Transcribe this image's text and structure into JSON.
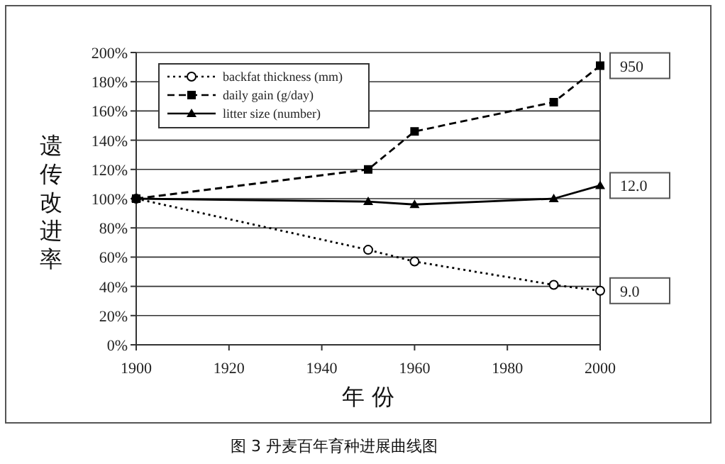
{
  "chart_data": {
    "type": "line",
    "ylabel": "遗传改进率",
    "xlabel": "年 份",
    "title": "图 3 丹麦百年育种进展曲线图",
    "x": [
      1900,
      1950,
      1960,
      1990,
      2000
    ],
    "series": [
      {
        "name": "backfat thickness (mm)",
        "color": "#000000",
        "marker": "circle",
        "line_style": "dotted",
        "values": [
          100,
          65,
          57,
          41,
          37
        ]
      },
      {
        "name": "daily gain (g/day)",
        "color": "#000000",
        "marker": "square",
        "line_style": "dashed",
        "values": [
          100,
          120,
          146,
          166,
          191
        ]
      },
      {
        "name": "litter size (number)",
        "color": "#000000",
        "marker": "triangle",
        "line_style": "solid",
        "values": [
          100,
          98,
          96,
          100,
          109
        ]
      }
    ],
    "xlim": [
      1900,
      2000
    ],
    "xticks": [
      1900,
      1920,
      1940,
      1960,
      1980,
      2000
    ],
    "ylim": [
      0,
      200
    ],
    "yticks": [
      {
        "value": 0,
        "label": "0%"
      },
      {
        "value": 20,
        "label": "20%"
      },
      {
        "value": 40,
        "label": "40%"
      },
      {
        "value": 60,
        "label": "60%"
      },
      {
        "value": 80,
        "label": "80%"
      },
      {
        "value": 100,
        "label": "100%"
      },
      {
        "value": 120,
        "label": "120%"
      },
      {
        "value": 140,
        "label": "140%"
      },
      {
        "value": 160,
        "label": "160%"
      },
      {
        "value": 180,
        "label": "180%"
      },
      {
        "value": 200,
        "label": "200%"
      }
    ],
    "grid": "y",
    "legend": "top left",
    "annotations": [
      "950",
      "12.0",
      "9.0"
    ]
  }
}
